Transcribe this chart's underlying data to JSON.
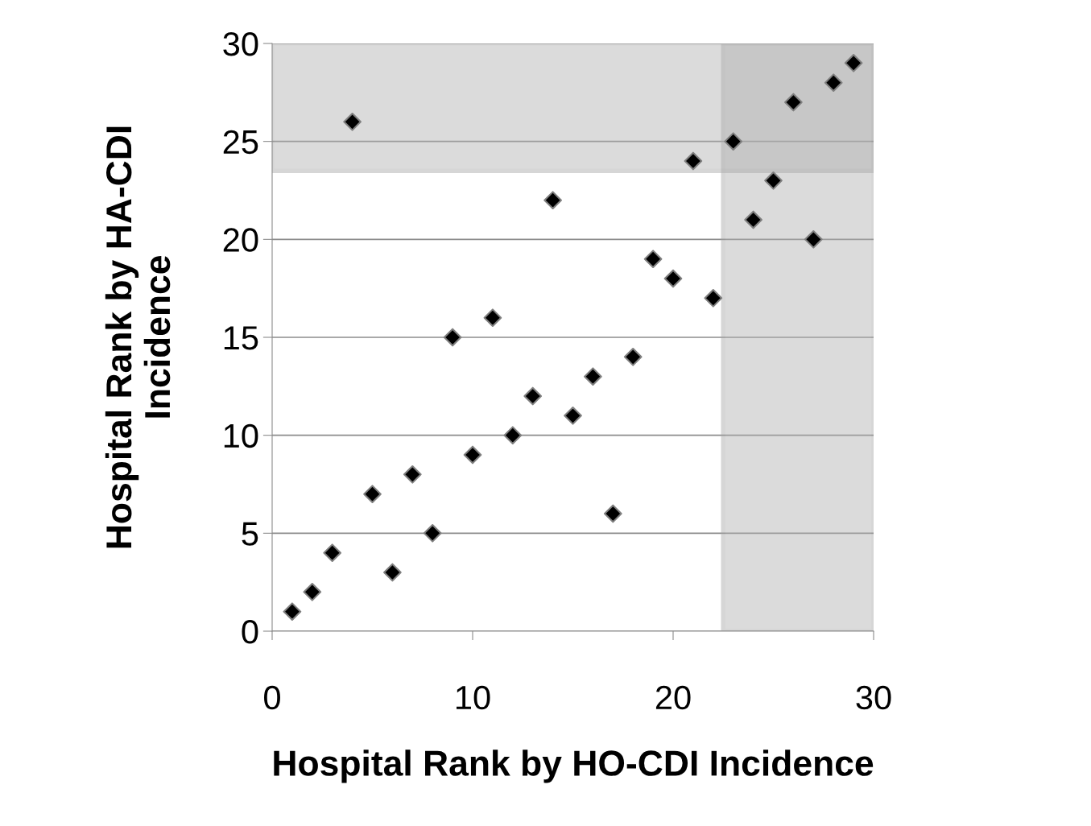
{
  "chart_data": {
    "type": "scatter",
    "xlabel": "Hospital Rank by HO-CDI Incidence",
    "ylabel": "Hospital Rank by HA-CDI\nIncidence",
    "x": [
      1,
      2,
      3,
      4,
      5,
      6,
      7,
      8,
      9,
      10,
      11,
      12,
      13,
      14,
      15,
      16,
      17,
      18,
      19,
      20,
      21,
      22,
      23,
      24,
      25,
      26,
      27,
      28,
      29
    ],
    "values": [
      1,
      2,
      4,
      26,
      7,
      3,
      8,
      5,
      15,
      9,
      16,
      10,
      12,
      22,
      11,
      13,
      6,
      14,
      19,
      18,
      24,
      17,
      25,
      21,
      23,
      27,
      20,
      28,
      29
    ],
    "color": "#000000",
    "marker": "diamond",
    "xlim": [
      0,
      30
    ],
    "ylim": [
      0,
      30
    ],
    "xticks": [
      0,
      10,
      20,
      30
    ],
    "yticks": [
      0,
      5,
      10,
      15,
      20,
      25,
      30
    ],
    "grid": "y",
    "bands": [
      {
        "axis": "x",
        "from": 22.5,
        "to": 30,
        "color": "#b0b0b0"
      },
      {
        "axis": "y",
        "from": 23.5,
        "to": 30,
        "color": "#b0b0b0"
      }
    ]
  }
}
